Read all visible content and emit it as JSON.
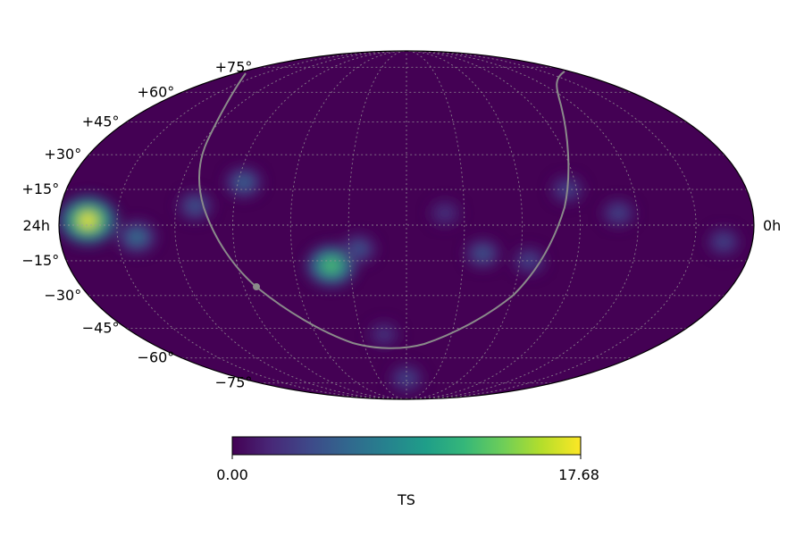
{
  "map": {
    "projection": "mollweide",
    "ra_labels": {
      "left": "24h",
      "right": "0h"
    },
    "dec_labels": [
      {
        "dec": 75,
        "text": "+75°"
      },
      {
        "dec": 60,
        "text": "+60°"
      },
      {
        "dec": 45,
        "text": "+45°"
      },
      {
        "dec": 30,
        "text": "+30°"
      },
      {
        "dec": 15,
        "text": "+15°"
      },
      {
        "dec": -15,
        "text": "−15°"
      },
      {
        "dec": -30,
        "text": "−30°"
      },
      {
        "dec": -45,
        "text": "−45°"
      },
      {
        "dec": -60,
        "text": "−60°"
      },
      {
        "dec": -75,
        "text": "−75°"
      }
    ],
    "background_color": "#440154",
    "grid": true,
    "hotspots": [
      {
        "lon": -165,
        "lat": 2,
        "value": 17.68
      },
      {
        "lon": -140,
        "lat": -5,
        "value": 7
      },
      {
        "lon": -110,
        "lat": 8,
        "value": 5
      },
      {
        "lon": -87,
        "lat": 18,
        "value": 6
      },
      {
        "lon": -40,
        "lat": -17,
        "value": 13
      },
      {
        "lon": -25,
        "lat": -10,
        "value": 5
      },
      {
        "lon": 20,
        "lat": 5,
        "value": 3
      },
      {
        "lon": 40,
        "lat": -12,
        "value": 5
      },
      {
        "lon": 65,
        "lat": -15,
        "value": 4
      },
      {
        "lon": 85,
        "lat": 15,
        "value": 4
      },
      {
        "lon": 110,
        "lat": 5,
        "value": 4
      },
      {
        "lon": 165,
        "lat": -7,
        "value": 4
      },
      {
        "lon": 0,
        "lat": -72,
        "value": 4
      },
      {
        "lon": -15,
        "lat": -48,
        "value": 3
      }
    ]
  },
  "colorbar": {
    "min_label": "0.00",
    "max_label": "17.68",
    "label": "TS",
    "colors": [
      "#440154",
      "#482878",
      "#3e4989",
      "#31688e",
      "#26828e",
      "#1f9e89",
      "#35b779",
      "#6ece58",
      "#b5de2b",
      "#fde725"
    ]
  }
}
